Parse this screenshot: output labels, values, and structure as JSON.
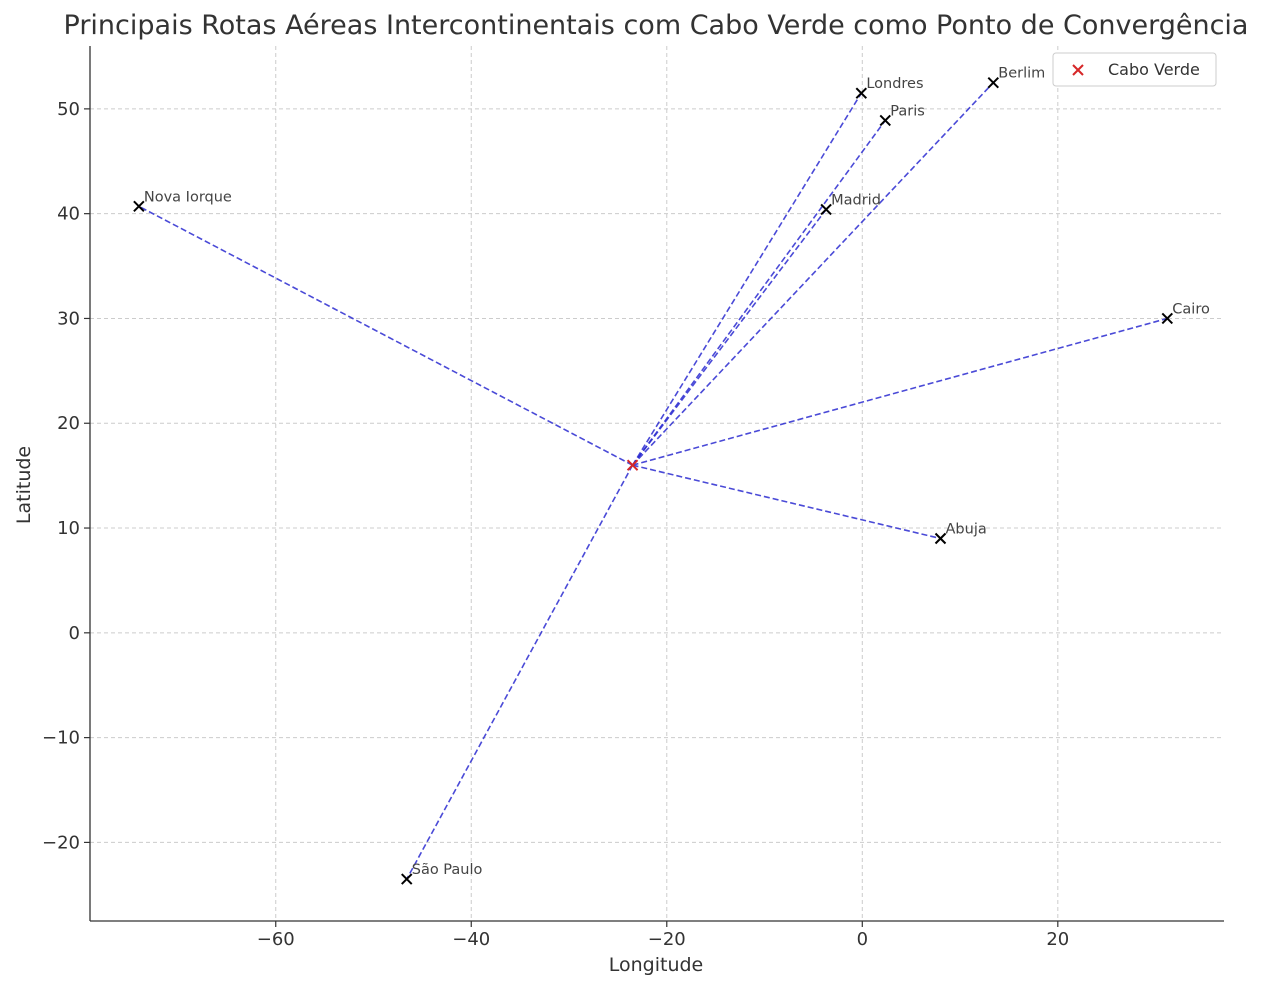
{
  "chart_data": {
    "type": "scatter",
    "title": "Principais Rotas Aéreas Intercontinentais com Cabo Verde como Ponto de Convergência",
    "xlabel": "Longitude",
    "ylabel": "Latitude",
    "xlim": [
      -79,
      37
    ],
    "ylim": [
      -27.5,
      56
    ],
    "xticks": [
      -60,
      -40,
      -20,
      0,
      20
    ],
    "yticks": [
      -20,
      -10,
      0,
      10,
      20,
      30,
      40,
      50
    ],
    "xtick_labels": [
      "−60",
      "−40",
      "−20",
      "0",
      "20"
    ],
    "ytick_labels": [
      "−20",
      "−10",
      "0",
      "10",
      "20",
      "30",
      "40",
      "50"
    ],
    "grid": true,
    "legend": {
      "position": "top-right",
      "entries": [
        "Cabo Verde"
      ]
    },
    "hub": {
      "name": "Cabo Verde",
      "x": -23.5,
      "y": 16.0,
      "color": "#d62728"
    },
    "cities": [
      {
        "name": "Nova Iorque",
        "x": -74.0,
        "y": 40.7
      },
      {
        "name": "Londres",
        "x": -0.1,
        "y": 51.5
      },
      {
        "name": "Paris",
        "x": 2.35,
        "y": 48.9
      },
      {
        "name": "Berlim",
        "x": 13.4,
        "y": 52.5
      },
      {
        "name": "Madrid",
        "x": -3.7,
        "y": 40.4
      },
      {
        "name": "Cairo",
        "x": 31.2,
        "y": 30.0
      },
      {
        "name": "Abuja",
        "x": 8.0,
        "y": 9.0
      },
      {
        "name": "São Paulo",
        "x": -46.6,
        "y": -23.5
      }
    ],
    "colors": {
      "route": "#2a2ad0",
      "city_marker": "#000000"
    }
  }
}
